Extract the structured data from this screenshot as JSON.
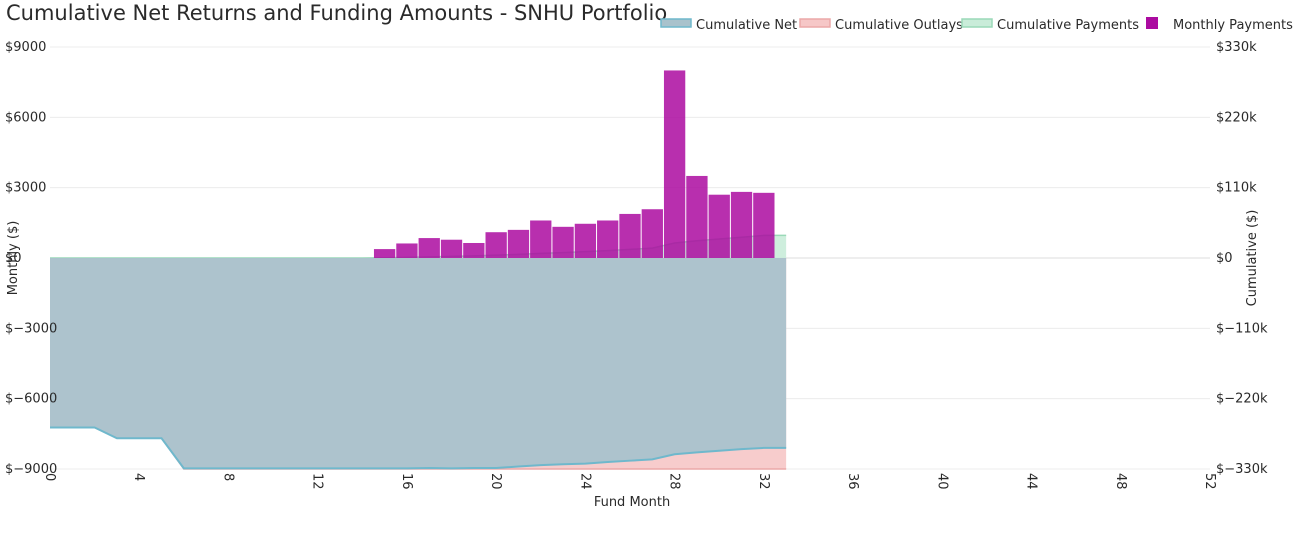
{
  "chart_data": {
    "type": "bar+area",
    "title": "Cumulative Net Returns and Funding Amounts - SNHU Portfolio",
    "xlabel": "Fund Month",
    "ylabel_left": "Monthly ($)",
    "ylabel_right": "Cumulative ($)",
    "xlim": [
      0,
      52
    ],
    "x_ticks": [
      0,
      4,
      8,
      12,
      16,
      20,
      24,
      28,
      32,
      36,
      40,
      44,
      48,
      52
    ],
    "x_tick_labels": [
      "0",
      "4",
      "8",
      "12",
      "16",
      "20",
      "24",
      "28",
      "32",
      "36",
      "40",
      "44",
      "48",
      "52"
    ],
    "ylim_left": [
      -9000,
      9000
    ],
    "left_ticks": [
      -9000,
      -6000,
      -3000,
      0,
      3000,
      6000,
      9000
    ],
    "left_tick_labels": [
      "$−9000",
      "$−6000",
      "$−3000",
      "$0",
      "$3000",
      "$6000",
      "$9000"
    ],
    "ylim_right": [
      -330000,
      330000
    ],
    "right_ticks": [
      -330000,
      -220000,
      -110000,
      0,
      110000,
      220000,
      330000
    ],
    "right_tick_labels": [
      "$−330k",
      "$−220k",
      "$−110k",
      "$0",
      "$110k",
      "$220k",
      "$330k"
    ],
    "grid": true,
    "legend_position": "top-right",
    "legend": [
      "Cumulative Net",
      "Cumulative Outlays",
      "Cumulative Payments",
      "Monthly Payments"
    ],
    "colors": {
      "monthly_payments": "#ab0ba0",
      "cumulative_net_line": "#6fb8cc",
      "cumulative_net_fill": "#a9c2cc",
      "cumulative_outlays_line": "#eca8a8",
      "cumulative_outlays_fill": "#f6c7c7",
      "cumulative_payments_line": "#9ad9b8",
      "cumulative_payments_fill": "#c9ecd9",
      "grid": "#ececec"
    },
    "series": [
      {
        "name": "Monthly Payments",
        "axis": "left",
        "kind": "bar",
        "x": [
          15,
          16,
          17,
          18,
          19,
          20,
          21,
          22,
          23,
          24,
          25,
          26,
          27,
          28,
          29,
          30,
          31,
          32
        ],
        "values": [
          380,
          620,
          850,
          780,
          640,
          1100,
          1200,
          1600,
          1330,
          1460,
          1600,
          1880,
          2080,
          8000,
          3500,
          2700,
          2820,
          2780
        ]
      },
      {
        "name": "Cumulative Net",
        "axis": "right",
        "kind": "area",
        "x": [
          0,
          1,
          2,
          3,
          4,
          5,
          6,
          7,
          8,
          9,
          10,
          11,
          12,
          13,
          14,
          15,
          16,
          17,
          18,
          19,
          20,
          21,
          22,
          23,
          24,
          25,
          26,
          27,
          28,
          29,
          30,
          31,
          32,
          33
        ],
        "values": [
          -265000,
          -265000,
          -265000,
          -282000,
          -282000,
          -282000,
          -329000,
          -329000,
          -329000,
          -329000,
          -329000,
          -329000,
          -329000,
          -329000,
          -329000,
          -329000,
          -329000,
          -328500,
          -329000,
          -328500,
          -328500,
          -326000,
          -324000,
          -322500,
          -321500,
          -319000,
          -317000,
          -315000,
          -307000,
          -304000,
          -301500,
          -299000,
          -297000,
          -297000
        ]
      },
      {
        "name": "Cumulative Outlays",
        "axis": "right",
        "kind": "area",
        "x": [
          0,
          1,
          2,
          3,
          4,
          5,
          6,
          7,
          8,
          9,
          10,
          11,
          12,
          13,
          14,
          15,
          16,
          17,
          18,
          19,
          20,
          21,
          22,
          23,
          24,
          25,
          26,
          27,
          28,
          29,
          30,
          31,
          32,
          33
        ],
        "values": [
          -265000,
          -265000,
          -265000,
          -282000,
          -282000,
          -282000,
          -330000,
          -330000,
          -330000,
          -330000,
          -330000,
          -330000,
          -330000,
          -330000,
          -330000,
          -330000,
          -330000,
          -330000,
          -330000,
          -330000,
          -330000,
          -330000,
          -330000,
          -330000,
          -330000,
          -330000,
          -330000,
          -330000,
          -330000,
          -330000,
          -330000,
          -330000,
          -330000,
          -330000
        ]
      },
      {
        "name": "Cumulative Payments",
        "axis": "right",
        "kind": "area",
        "x": [
          0,
          1,
          2,
          3,
          4,
          5,
          6,
          7,
          8,
          9,
          10,
          11,
          12,
          13,
          14,
          15,
          16,
          17,
          18,
          19,
          20,
          21,
          22,
          23,
          24,
          25,
          26,
          27,
          28,
          29,
          30,
          31,
          32,
          33
        ],
        "values": [
          0,
          0,
          0,
          0,
          0,
          0,
          0,
          0,
          0,
          0,
          0,
          0,
          0,
          0,
          0,
          400,
          1000,
          1850,
          2600,
          3300,
          4400,
          5600,
          7200,
          8500,
          10000,
          11600,
          13500,
          15500,
          23500,
          27000,
          29700,
          32500,
          35300,
          35300
        ]
      }
    ]
  }
}
